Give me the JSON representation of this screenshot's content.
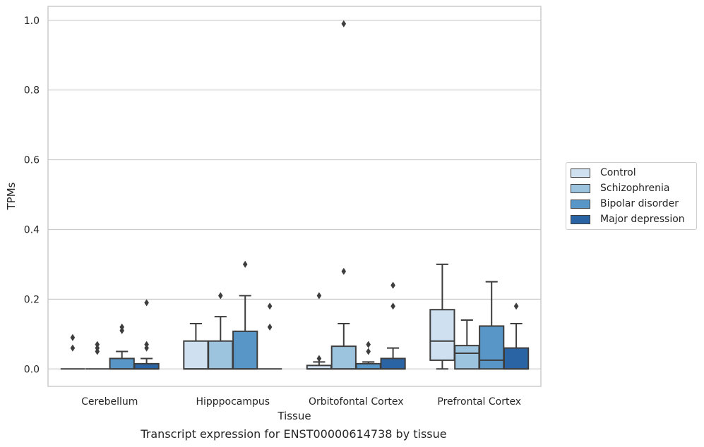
{
  "chart_data": {
    "type": "box",
    "caption": "Transcript expression for ENST00000614738 by tissue",
    "xlabel": "Tissue",
    "ylabel": "TPMs",
    "ylim": [
      -0.05,
      1.04
    ],
    "yticks": [
      "0.0",
      "0.2",
      "0.4",
      "0.6",
      "0.8",
      "1.0"
    ],
    "grid": true,
    "legend_position": "right",
    "categories": [
      "Cerebellum",
      "Hipppocampus",
      "Orbitofontal Cortex",
      "Prefrontal Cortex"
    ],
    "series": [
      {
        "name": "Control",
        "color": "#cfe0f1",
        "boxes": [
          {
            "q1": 0,
            "median": 0,
            "q3": 0,
            "whisker_low": 0,
            "whisker_high": 0,
            "outliers": [
              0.06,
              0.09
            ]
          },
          {
            "q1": 0,
            "median": 0,
            "q3": 0.08,
            "whisker_low": 0,
            "whisker_high": 0.13,
            "outliers": []
          },
          {
            "q1": 0,
            "median": 0,
            "q3": 0.01,
            "whisker_low": 0,
            "whisker_high": 0.02,
            "outliers": [
              0.03,
              0.21
            ]
          },
          {
            "q1": 0.025,
            "median": 0.08,
            "q3": 0.17,
            "whisker_low": 0,
            "whisker_high": 0.3,
            "outliers": []
          }
        ]
      },
      {
        "name": "Schizophrenia",
        "color": "#9cc4df",
        "boxes": [
          {
            "q1": 0,
            "median": 0,
            "q3": 0,
            "whisker_low": 0,
            "whisker_high": 0,
            "outliers": [
              0.05,
              0.06,
              0.07
            ]
          },
          {
            "q1": 0,
            "median": 0,
            "q3": 0.08,
            "whisker_low": 0,
            "whisker_high": 0.15,
            "outliers": [
              0.21
            ]
          },
          {
            "q1": 0,
            "median": 0,
            "q3": 0.065,
            "whisker_low": 0,
            "whisker_high": 0.13,
            "outliers": [
              0.28,
              0.99
            ]
          },
          {
            "q1": 0,
            "median": 0.045,
            "q3": 0.067,
            "whisker_low": 0,
            "whisker_high": 0.14,
            "outliers": []
          }
        ]
      },
      {
        "name": "Bipolar disorder",
        "color": "#5796c6",
        "boxes": [
          {
            "q1": 0,
            "median": 0,
            "q3": 0.03,
            "whisker_low": 0,
            "whisker_high": 0.05,
            "outliers": [
              0.11,
              0.12
            ]
          },
          {
            "q1": 0,
            "median": 0,
            "q3": 0.108,
            "whisker_low": 0,
            "whisker_high": 0.21,
            "outliers": [
              0.3
            ]
          },
          {
            "q1": 0,
            "median": 0,
            "q3": 0.015,
            "whisker_low": 0,
            "whisker_high": 0.02,
            "outliers": [
              0.05,
              0.07
            ]
          },
          {
            "q1": 0,
            "median": 0.025,
            "q3": 0.123,
            "whisker_low": 0,
            "whisker_high": 0.25,
            "outliers": []
          }
        ]
      },
      {
        "name": "Major depression",
        "color": "#2a64a4",
        "boxes": [
          {
            "q1": 0,
            "median": 0,
            "q3": 0.015,
            "whisker_low": 0,
            "whisker_high": 0.03,
            "outliers": [
              0.06,
              0.07,
              0.19
            ]
          },
          {
            "q1": 0,
            "median": 0,
            "q3": 0,
            "whisker_low": 0,
            "whisker_high": 0,
            "outliers": [
              0.12,
              0.18
            ]
          },
          {
            "q1": 0,
            "median": 0,
            "q3": 0.03,
            "whisker_low": 0,
            "whisker_high": 0.06,
            "outliers": [
              0.18,
              0.24
            ]
          },
          {
            "q1": 0,
            "median": 0,
            "q3": 0.06,
            "whisker_low": 0,
            "whisker_high": 0.13,
            "outliers": [
              0.18
            ]
          }
        ]
      }
    ]
  }
}
